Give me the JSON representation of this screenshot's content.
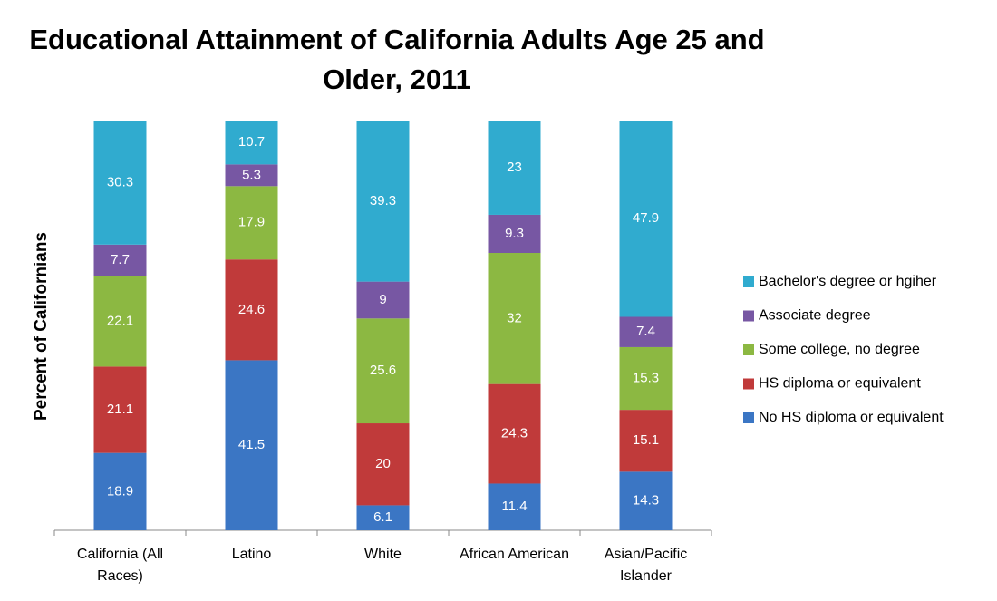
{
  "chart_data": {
    "type": "stacked_bar",
    "title": "Educational Attainment of California Adults Age 25 and Older, 2011",
    "ylabel": "Percent of Californians",
    "categories": [
      "California (All Races)",
      "Latino",
      "White",
      "African American",
      "Asian/Pacific Islander"
    ],
    "series": [
      {
        "name": "No HS diploma or equivalent",
        "color": "#3b76c4",
        "values": [
          18.9,
          41.5,
          6.1,
          11.4,
          14.3
        ]
      },
      {
        "name": "HS diploma or equivalent",
        "color": "#c03a3a",
        "values": [
          21.1,
          24.6,
          20,
          24.3,
          15.1
        ]
      },
      {
        "name": "Some college, no degree",
        "color": "#8cb842",
        "values": [
          22.1,
          17.9,
          25.6,
          32,
          15.3
        ]
      },
      {
        "name": "Associate degree",
        "color": "#7757a3",
        "values": [
          7.7,
          5.3,
          9,
          9.3,
          7.4
        ]
      },
      {
        "name": "Bachelor's degree or hgiher",
        "color": "#30abcf",
        "values": [
          30.3,
          10.7,
          39.3,
          23,
          47.9
        ]
      }
    ],
    "legend": "right"
  }
}
